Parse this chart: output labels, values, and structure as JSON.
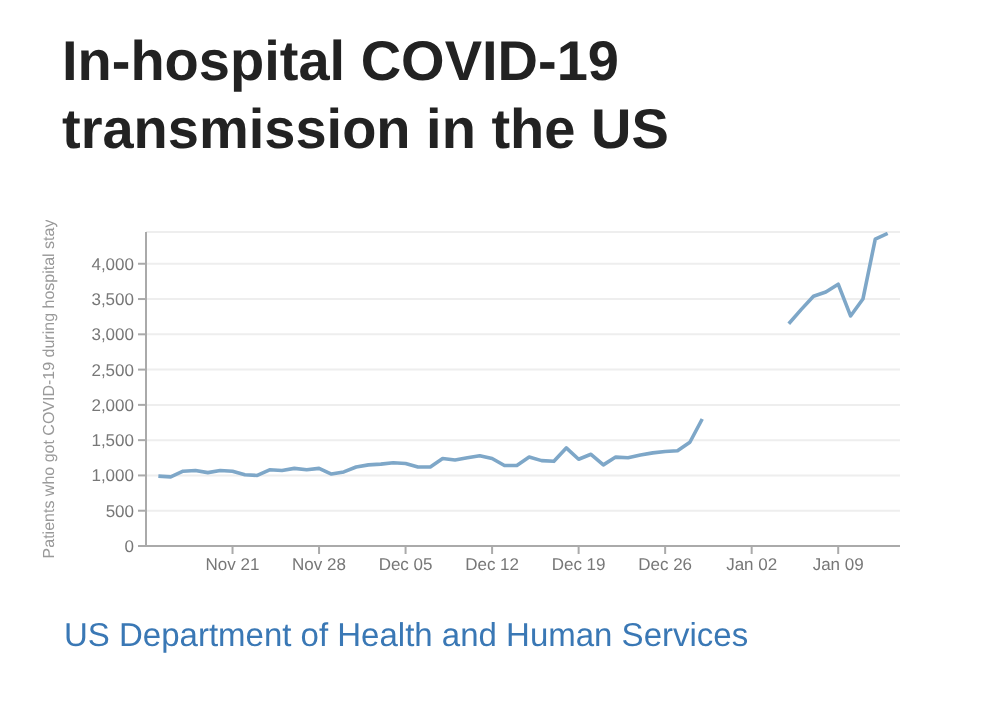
{
  "chart_data": {
    "type": "line",
    "title": "In-hospital COVID-19\ntransmission in the US",
    "ylabel": "Patients who got COVID-19 during hospital stay",
    "annotations": [
      "US Department of Health and Human Services"
    ],
    "categories": [
      null,
      null,
      null,
      null,
      null,
      null,
      "Nov 21",
      null,
      null,
      null,
      null,
      null,
      null,
      "Nov 28",
      null,
      null,
      null,
      null,
      null,
      null,
      "Dec 05",
      null,
      null,
      null,
      null,
      null,
      null,
      "Dec 12",
      null,
      null,
      null,
      null,
      null,
      null,
      "Dec 19",
      null,
      null,
      null,
      null,
      null,
      null,
      "Dec 26",
      null,
      null,
      null,
      null,
      null,
      null,
      "Jan 02",
      null,
      null,
      null,
      null,
      null,
      null,
      "Jan 09",
      null,
      null,
      null,
      null
    ],
    "series": [
      {
        "color": "#7ea7c8",
        "values": [
          990,
          980,
          1060,
          1070,
          1040,
          1070,
          1060,
          1010,
          1000,
          1080,
          1070,
          1100,
          1080,
          1100,
          1020,
          1050,
          1120,
          1150,
          1160,
          1180,
          1170,
          1120,
          1120,
          1240,
          1220,
          1250,
          1280,
          1240,
          1140,
          1140,
          1260,
          1210,
          1200,
          1390,
          1230,
          1300,
          1150,
          1260,
          1250,
          1290,
          1320,
          1340,
          1350,
          1470,
          1800,
          null,
          null,
          null,
          null,
          null,
          null,
          3150,
          3350,
          3540,
          3600,
          3710,
          3260,
          3500,
          4350,
          4430
        ]
      }
    ],
    "ylim": [
      0,
      4450
    ],
    "yticks": [
      {
        "value": 0,
        "label": "0"
      },
      {
        "value": 500,
        "label": "500"
      },
      {
        "value": 1000,
        "label": "1,000"
      },
      {
        "value": 1500,
        "label": "1,500"
      },
      {
        "value": 2000,
        "label": "2,000"
      },
      {
        "value": 2500,
        "label": "2,500"
      },
      {
        "value": 3000,
        "label": "3,000"
      },
      {
        "value": 3500,
        "label": "3,500"
      },
      {
        "value": 4000,
        "label": "4,000"
      }
    ],
    "grid": "y",
    "legend": false,
    "marker": "none",
    "line_style": "solid"
  }
}
